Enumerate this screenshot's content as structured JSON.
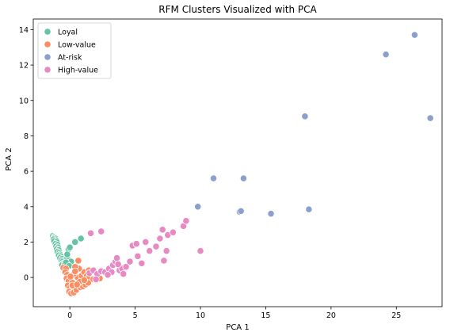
{
  "chart_data": {
    "type": "scatter",
    "title": "RFM Clusters Visualized with PCA",
    "xlabel": "PCA 1",
    "ylabel": "PCA 2",
    "xlim": [
      -2.8,
      28.5
    ],
    "ylim": [
      -1.65,
      14.6
    ],
    "xticks": [
      0,
      5,
      10,
      15,
      20,
      25
    ],
    "yticks": [
      0,
      2,
      4,
      6,
      8,
      10,
      12,
      14
    ],
    "grid": false,
    "legend_position": "top-left",
    "series": [
      {
        "name": "Loyal",
        "color": "#66c2a5",
        "points": [
          [
            -1.3,
            2.35
          ],
          [
            -1.2,
            2.3
          ],
          [
            -1.15,
            2.25
          ],
          [
            -1.1,
            2.2
          ],
          [
            -1.25,
            2.15
          ],
          [
            -1.05,
            2.1
          ],
          [
            -1.2,
            2.05
          ],
          [
            -1.0,
            2.0
          ],
          [
            -1.1,
            1.9
          ],
          [
            -0.95,
            1.85
          ],
          [
            -1.05,
            1.75
          ],
          [
            -0.9,
            1.7
          ],
          [
            -1.0,
            1.6
          ],
          [
            -0.85,
            1.55
          ],
          [
            -0.95,
            1.45
          ],
          [
            -0.8,
            1.4
          ],
          [
            -0.75,
            1.3
          ],
          [
            -0.85,
            1.25
          ],
          [
            -0.7,
            1.2
          ],
          [
            -0.75,
            1.1
          ],
          [
            -0.6,
            1.05
          ],
          [
            -0.65,
            0.95
          ],
          [
            -0.55,
            0.9
          ],
          [
            -0.5,
            0.8
          ],
          [
            -0.6,
            0.7
          ],
          [
            -0.4,
            0.75
          ],
          [
            -0.2,
            1.1
          ],
          [
            -0.1,
            1.6
          ],
          [
            0.0,
            1.7
          ],
          [
            0.1,
            0.9
          ],
          [
            0.4,
            2.0
          ],
          [
            0.85,
            2.2
          ],
          [
            -0.3,
            0.85
          ],
          [
            -0.05,
            0.65
          ],
          [
            -0.2,
            1.3
          ]
        ]
      },
      {
        "name": "Low-value",
        "color": "#fc8d62",
        "points": [
          [
            -0.5,
            0.55
          ],
          [
            -0.3,
            0.5
          ],
          [
            -0.35,
            0.3
          ],
          [
            -0.2,
            0.15
          ],
          [
            -0.25,
            -0.05
          ],
          [
            -0.1,
            -0.2
          ],
          [
            -0.15,
            -0.45
          ],
          [
            0.0,
            -0.6
          ],
          [
            -0.05,
            -0.8
          ],
          [
            0.1,
            -0.9
          ],
          [
            0.3,
            -0.85
          ],
          [
            0.2,
            -0.3
          ],
          [
            0.5,
            -0.7
          ],
          [
            0.8,
            -0.55
          ],
          [
            1.0,
            -0.5
          ],
          [
            1.2,
            -0.4
          ],
          [
            1.4,
            -0.3
          ],
          [
            0.6,
            0.0
          ],
          [
            0.9,
            0.1
          ],
          [
            1.1,
            0.3
          ],
          [
            0.7,
            0.5
          ],
          [
            0.4,
            0.6
          ],
          [
            0.3,
            0.2
          ],
          [
            1.3,
            0.1
          ],
          [
            1.5,
            0.05
          ],
          [
            1.8,
            -0.1
          ],
          [
            2.0,
            -0.15
          ],
          [
            2.3,
            -0.05
          ],
          [
            0.65,
            0.95
          ],
          [
            1.45,
            0.4
          ],
          [
            0.2,
            -0.45
          ],
          [
            0.75,
            -0.25
          ],
          [
            1.1,
            -0.15
          ],
          [
            0.4,
            0.35
          ],
          [
            0.05,
            0.05
          ],
          [
            0.55,
            -0.4
          ]
        ]
      },
      {
        "name": "At-risk",
        "color": "#8da0cb",
        "points": [
          [
            9.8,
            4.0
          ],
          [
            11.0,
            5.6
          ],
          [
            13.0,
            3.7
          ],
          [
            13.1,
            3.75
          ],
          [
            13.3,
            5.6
          ],
          [
            15.4,
            3.6
          ],
          [
            18.0,
            9.1
          ],
          [
            18.3,
            3.85
          ],
          [
            24.2,
            12.6
          ],
          [
            26.4,
            13.7
          ],
          [
            27.6,
            9.0
          ]
        ]
      },
      {
        "name": "High-value",
        "color": "#e78ac3",
        "points": [
          [
            1.6,
            2.5
          ],
          [
            2.4,
            2.6
          ],
          [
            1.5,
            0.25
          ],
          [
            1.8,
            0.4
          ],
          [
            2.1,
            0.2
          ],
          [
            2.4,
            0.35
          ],
          [
            2.7,
            0.3
          ],
          [
            3.0,
            0.5
          ],
          [
            3.3,
            0.7
          ],
          [
            3.5,
            0.9
          ],
          [
            3.6,
            1.1
          ],
          [
            3.2,
            0.3
          ],
          [
            3.8,
            0.4
          ],
          [
            4.0,
            0.5
          ],
          [
            4.3,
            0.6
          ],
          [
            4.6,
            0.9
          ],
          [
            4.8,
            1.8
          ],
          [
            5.1,
            1.9
          ],
          [
            5.2,
            1.2
          ],
          [
            5.5,
            0.8
          ],
          [
            5.8,
            2.0
          ],
          [
            6.1,
            1.5
          ],
          [
            6.6,
            1.75
          ],
          [
            6.9,
            2.2
          ],
          [
            7.1,
            2.7
          ],
          [
            7.2,
            0.95
          ],
          [
            7.4,
            1.5
          ],
          [
            7.5,
            2.4
          ],
          [
            7.9,
            2.55
          ],
          [
            8.7,
            2.9
          ],
          [
            8.9,
            3.2
          ],
          [
            10.0,
            1.5
          ],
          [
            2.9,
            0.15
          ],
          [
            4.1,
            0.2
          ],
          [
            2.0,
            -0.1
          ],
          [
            3.7,
            0.75
          ]
        ]
      }
    ]
  }
}
